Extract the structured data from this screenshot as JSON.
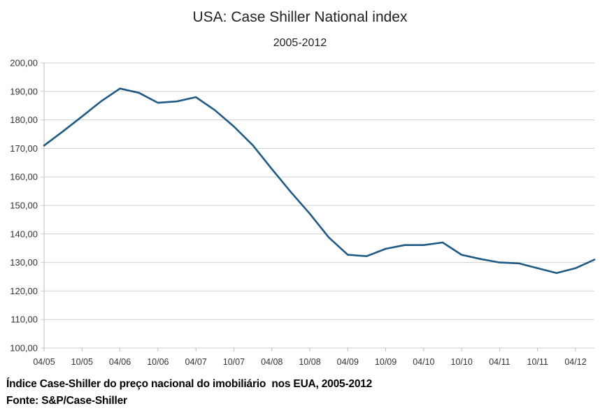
{
  "chart_data": {
    "type": "line",
    "title": "USA: Case Shiller National index",
    "subtitle": "2005-2012",
    "xlabel": "",
    "ylabel": "",
    "ylim": [
      100,
      200
    ],
    "y_ticks": [
      100,
      110,
      120,
      130,
      140,
      150,
      160,
      170,
      180,
      190,
      200
    ],
    "y_tick_labels": [
      "100,00",
      "110,00",
      "120,00",
      "130,00",
      "140,00",
      "150,00",
      "160,00",
      "170,00",
      "180,00",
      "190,00",
      "200,00"
    ],
    "x_tick_labels": [
      "04/05",
      "10/05",
      "04/06",
      "10/06",
      "04/07",
      "10/07",
      "04/08",
      "10/08",
      "04/09",
      "10/09",
      "04/10",
      "10/10",
      "04/11",
      "10/11",
      "04/12"
    ],
    "grid": true,
    "legend": "none",
    "line_color": "#1f5a85",
    "series": [
      {
        "name": "Case Shiller National index",
        "x": [
          "04/05",
          "07/05",
          "10/05",
          "01/06",
          "04/06",
          "07/06",
          "10/06",
          "01/07",
          "04/07",
          "07/07",
          "10/07",
          "01/08",
          "04/08",
          "07/08",
          "10/08",
          "01/09",
          "04/09",
          "07/09",
          "10/09",
          "01/10",
          "04/10",
          "07/10",
          "10/10",
          "01/11",
          "04/11",
          "07/11",
          "10/11",
          "01/12",
          "04/12",
          "07/12"
        ],
        "values": [
          171.0,
          176.0,
          181.2,
          186.5,
          191.0,
          189.5,
          186.0,
          186.5,
          188.0,
          183.4,
          177.7,
          171.1,
          162.8,
          154.7,
          147.1,
          138.8,
          132.7,
          132.2,
          134.8,
          136.1,
          136.1,
          137.0,
          132.7,
          131.2,
          130.0,
          129.7,
          128.0,
          126.3,
          128.0,
          131.0
        ]
      }
    ]
  },
  "caption": {
    "line1": "Índice Case-Shiller do preço nacional do imobiliário  nos EUA, 2005-2012",
    "line2": "Fonte: S&P/Case-Shiller"
  }
}
